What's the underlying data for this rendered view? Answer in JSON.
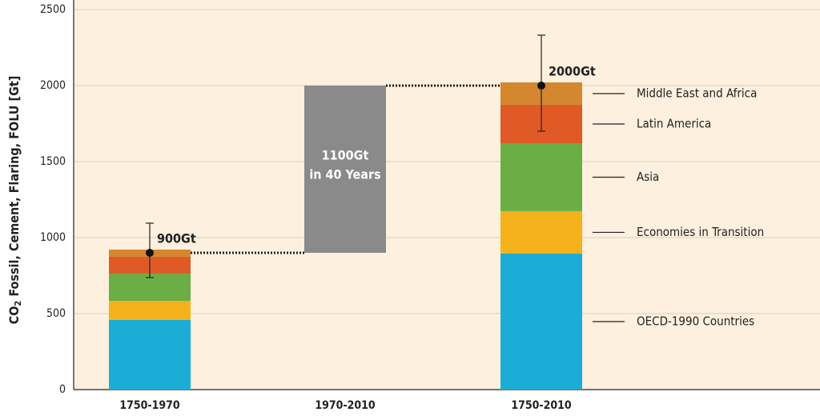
{
  "chart_data": {
    "type": "bar",
    "y_label": {
      "prefix": "CO",
      "subscript": "2",
      "rest": " Fossil, Cement, Flaring, FOLU [Gt]"
    },
    "categories": [
      "1750-1970",
      "1970-2010",
      "1750-2010"
    ],
    "series": [
      {
        "name": "OECD-1990 Countries",
        "color": "#1badd6",
        "values": [
          458,
          null,
          895
        ]
      },
      {
        "name": "Economies in Transition",
        "color": "#f5b11b",
        "values": [
          126,
          null,
          279
        ]
      },
      {
        "name": "Asia",
        "color": "#6aae45",
        "values": [
          179,
          null,
          447
        ]
      },
      {
        "name": "Latin America",
        "color": "#e05a27",
        "values": [
          111,
          null,
          253
        ]
      },
      {
        "name": "Middle East and Africa",
        "color": "#d4872e",
        "values": [
          47,
          null,
          147
        ]
      }
    ],
    "totals": [
      900,
      null,
      2000
    ],
    "total_labels": [
      "900Gt",
      null,
      "2000Gt"
    ],
    "error_low": [
      737,
      null,
      1700
    ],
    "error_high": [
      1095,
      null,
      2332
    ],
    "change": {
      "label": "1100Gt",
      "sublabel": "in 40 Years",
      "color": "#8a8a8a"
    },
    "ylim": [
      0,
      2500
    ],
    "yticks": [
      0,
      500,
      1000,
      1500,
      2000,
      2500
    ],
    "grid": true,
    "background": "#fdf0de"
  }
}
